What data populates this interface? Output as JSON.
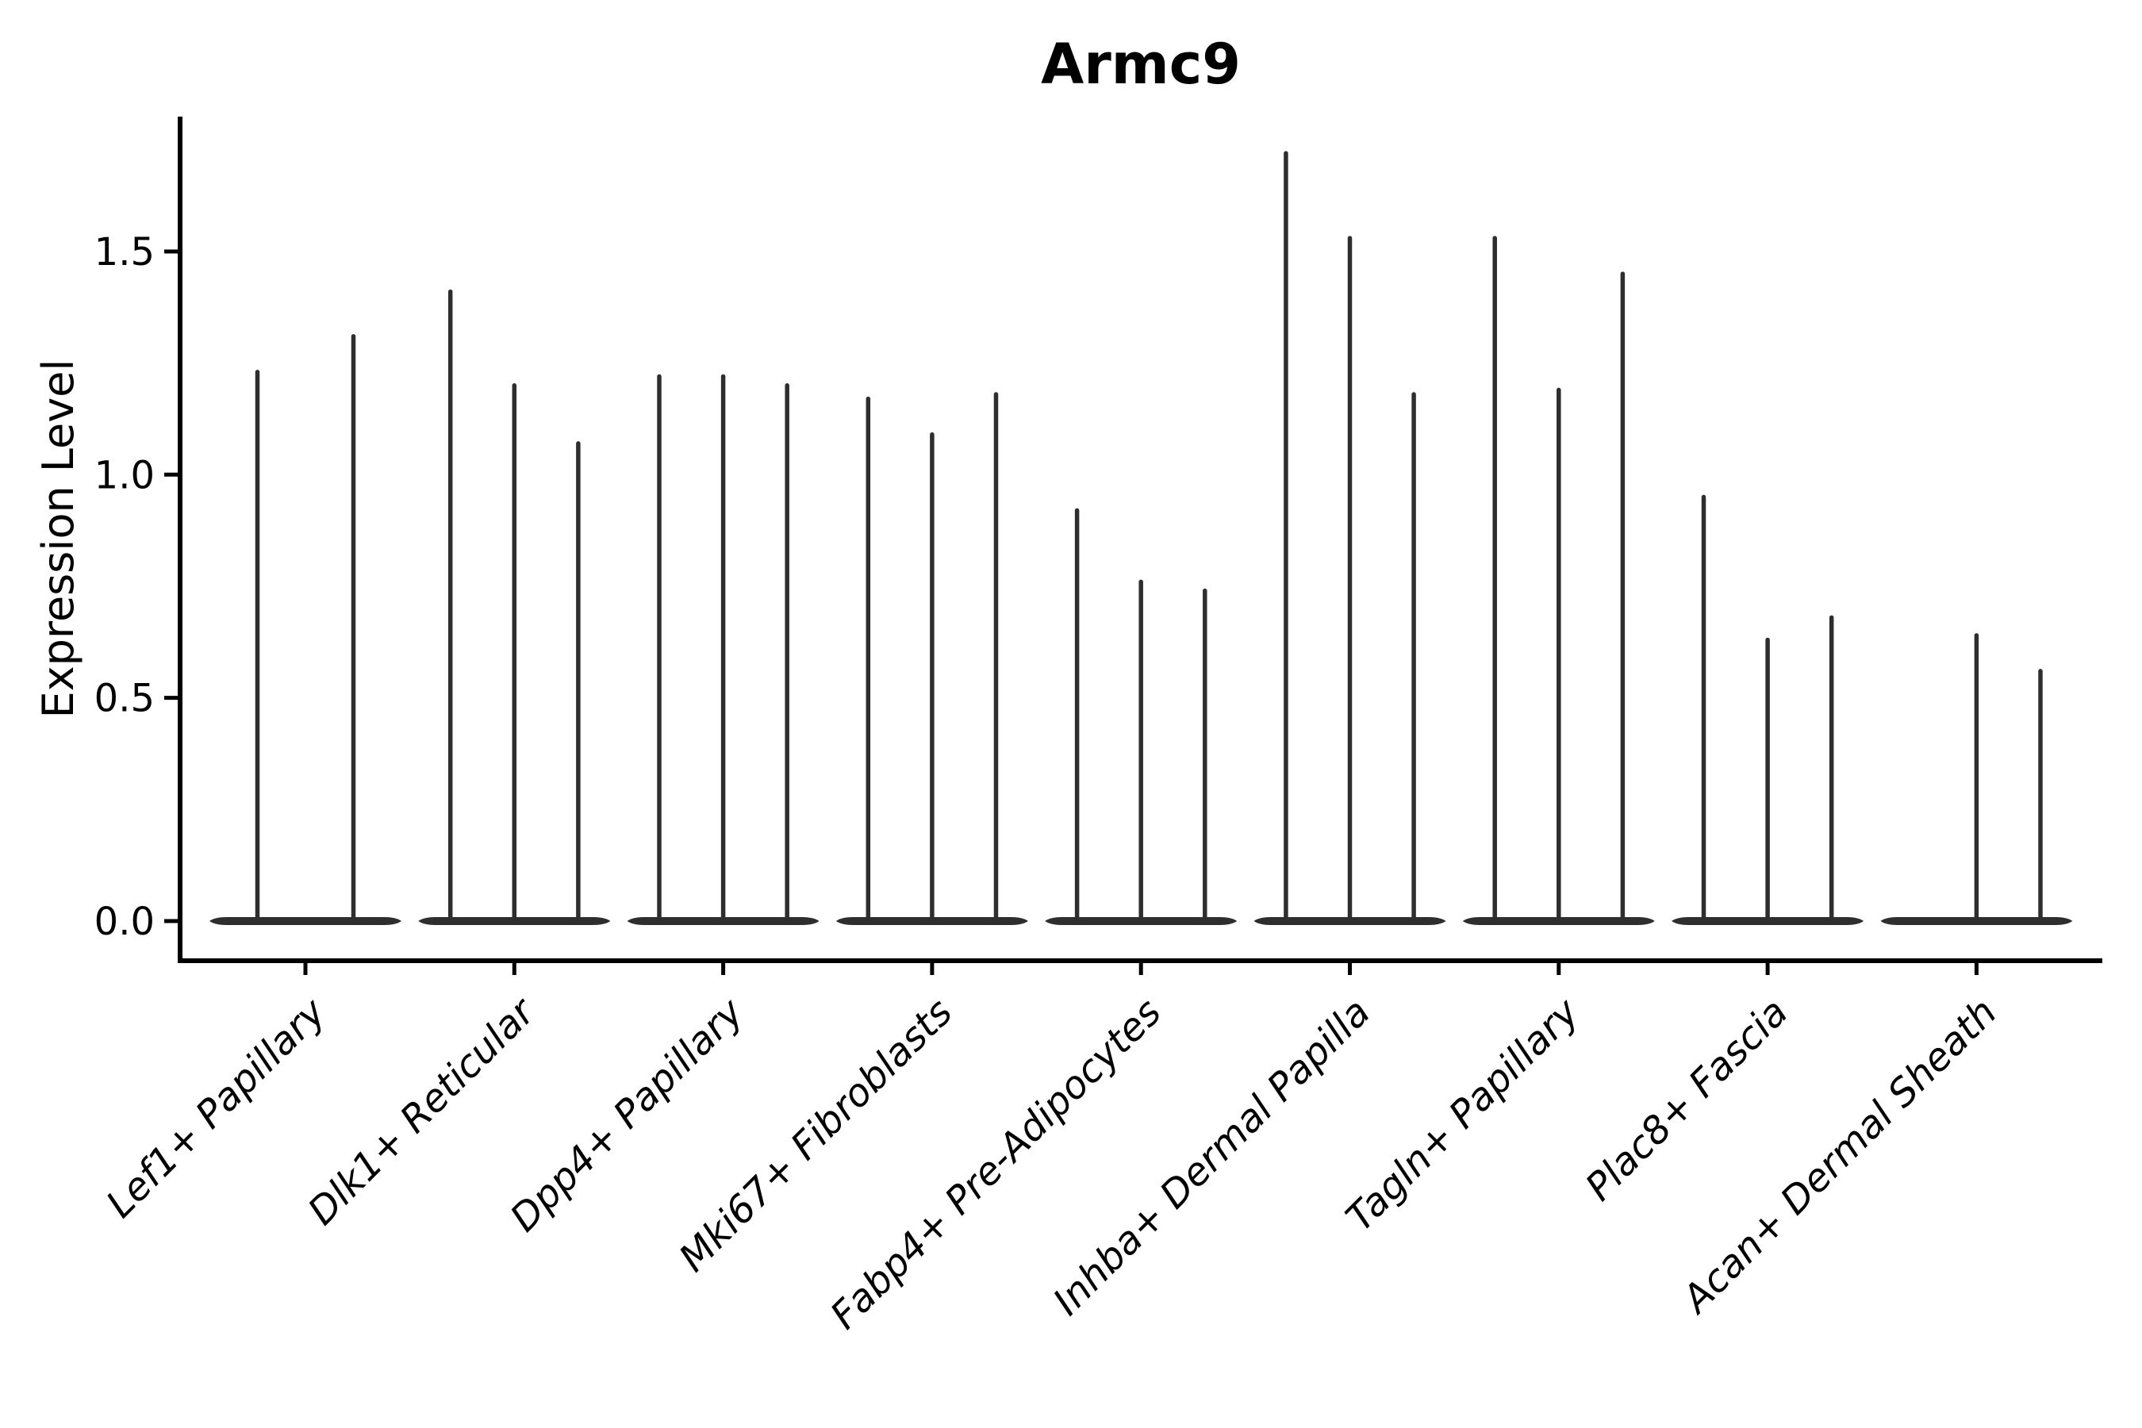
{
  "chart_data": {
    "type": "violin",
    "title": "Armc9",
    "xlabel": "",
    "ylabel": "Expression Level",
    "yticks": [
      "0.0",
      "0.5",
      "1.0",
      "1.5"
    ],
    "ytick_values": [
      0.0,
      0.5,
      1.0,
      1.5
    ],
    "ylim": [
      -0.09,
      1.8
    ],
    "grid": false,
    "legend": "none",
    "x_tick_label_style": "italic, rotated 45deg",
    "categories": [
      "Lef1+ Papillary",
      "Dlk1+ Reticular",
      "Dpp4+ Papillary",
      "Mki67+ Fibroblasts",
      "Fabp4+ Pre-Adipocytes",
      "Inhba+ Dermal Papilla",
      "Tagln+ Papillary",
      "Plac8+ Fascia",
      "Acan+ Dermal Sheath"
    ],
    "groups": [
      {
        "category": "Lef1+ Papillary",
        "violins": [
          {
            "pos": 0.25,
            "max": 1.23
          },
          {
            "pos": 0.75,
            "max": 1.31
          }
        ]
      },
      {
        "category": "Dlk1+ Reticular",
        "violins": [
          {
            "pos": 0.167,
            "max": 1.41
          },
          {
            "pos": 0.5,
            "max": 1.2
          },
          {
            "pos": 0.833,
            "max": 1.07
          }
        ]
      },
      {
        "category": "Dpp4+ Papillary",
        "violins": [
          {
            "pos": 0.167,
            "max": 1.22
          },
          {
            "pos": 0.5,
            "max": 1.22
          },
          {
            "pos": 0.833,
            "max": 1.2
          }
        ]
      },
      {
        "category": "Mki67+ Fibroblasts",
        "violins": [
          {
            "pos": 0.167,
            "max": 1.17
          },
          {
            "pos": 0.5,
            "max": 1.09
          },
          {
            "pos": 0.833,
            "max": 1.18
          }
        ]
      },
      {
        "category": "Fabp4+ Pre-Adipocytes",
        "violins": [
          {
            "pos": 0.167,
            "max": 0.92
          },
          {
            "pos": 0.5,
            "max": 0.76
          },
          {
            "pos": 0.833,
            "max": 0.74
          }
        ]
      },
      {
        "category": "Inhba+ Dermal Papilla",
        "violins": [
          {
            "pos": 0.167,
            "max": 1.72
          },
          {
            "pos": 0.5,
            "max": 1.53
          },
          {
            "pos": 0.833,
            "max": 1.18
          }
        ]
      },
      {
        "category": "Tagln+ Papillary",
        "violins": [
          {
            "pos": 0.167,
            "max": 1.53
          },
          {
            "pos": 0.5,
            "max": 1.19
          },
          {
            "pos": 0.833,
            "max": 1.45
          }
        ]
      },
      {
        "category": "Plac8+ Fascia",
        "violins": [
          {
            "pos": 0.167,
            "max": 0.95
          },
          {
            "pos": 0.5,
            "max": 0.63
          },
          {
            "pos": 0.833,
            "max": 0.68
          }
        ]
      },
      {
        "category": "Acan+ Dermal Sheath",
        "violins": [
          {
            "pos": 0.167,
            "max": 0.0
          },
          {
            "pos": 0.5,
            "max": 0.64
          },
          {
            "pos": 0.833,
            "max": 0.56
          }
        ]
      }
    ],
    "colors": {
      "violin": "#2e2e2e",
      "axis": "#000000",
      "text": "#000000",
      "background": "#ffffff"
    }
  }
}
